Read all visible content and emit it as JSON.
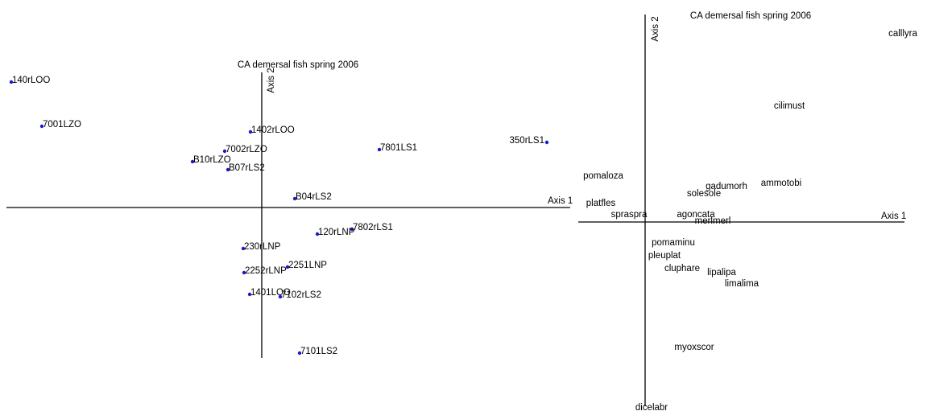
{
  "chart_data": [
    {
      "type": "scatter",
      "title": "CA demersal fish spring 2006",
      "xlabel": "Axis 1",
      "ylabel": "Axis 2",
      "color": "#1a1acc",
      "marker": true,
      "xlim": [
        -3.17,
        3.83
      ],
      "ylim": [
        -1.87,
        1.68
      ],
      "labels": [
        "140rLOO",
        "7001LZO",
        "1402rLOO",
        "7002rLZO",
        "B10rLZO",
        "B07rLS2",
        "7801LS1",
        "350rLS1",
        "B04rLS2",
        "7802rLS1",
        "120rLNP",
        "230rLNP",
        "2251LNP",
        "2252rLNP",
        "1401LOO",
        "7102rLS2",
        "7101LS2"
      ],
      "x": [
        -3.11,
        -2.73,
        -0.14,
        -0.46,
        -0.86,
        -0.42,
        1.46,
        3.54,
        0.41,
        1.12,
        0.69,
        -0.23,
        0.32,
        -0.22,
        -0.15,
        0.23,
        0.47
      ],
      "y": [
        1.56,
        1.01,
        0.94,
        0.7,
        0.57,
        0.47,
        0.72,
        0.81,
        0.11,
        -0.27,
        -0.33,
        -0.51,
        -0.74,
        -0.81,
        -1.08,
        -1.11,
        -1.81
      ]
    },
    {
      "type": "scatter",
      "title": "CA demersal fish spring 2006",
      "xlabel": "Axis 1",
      "ylabel": "Axis 2",
      "marker": false,
      "xlim": [
        -0.83,
        3.22
      ],
      "ylim": [
        -2.29,
        2.58
      ],
      "labels": [
        "calllyra",
        "cilimust",
        "pomaloza",
        "gadumorh",
        "ammotobi",
        "solesole",
        "platfles",
        "spraspra",
        "agoncata",
        "merlmerl",
        "pomaminu",
        "pleuplat",
        "cluphare",
        "lipalipa",
        "limalima",
        "myoxscor",
        "dicelabr"
      ],
      "x": [
        3.2,
        1.79,
        -0.52,
        1.01,
        1.69,
        0.73,
        -0.55,
        -0.2,
        0.63,
        0.84,
        0.35,
        0.24,
        0.46,
        0.95,
        1.2,
        0.61,
        0.08
      ],
      "y": [
        2.34,
        1.44,
        0.57,
        0.44,
        0.48,
        0.35,
        0.23,
        0.09,
        0.09,
        0.01,
        -0.26,
        -0.42,
        -0.58,
        -0.63,
        -0.77,
        -1.56,
        -2.31
      ]
    }
  ]
}
